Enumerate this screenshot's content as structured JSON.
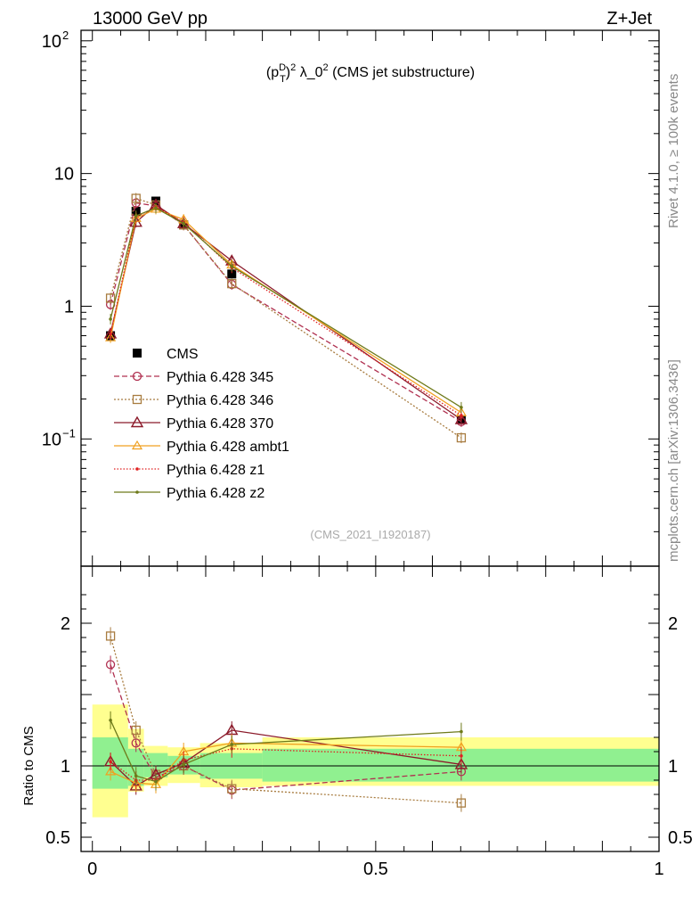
{
  "header": {
    "left": "13000 GeV pp",
    "right": "Z+Jet"
  },
  "plot_title": "(p_T^D)^2 λ_0^2 (CMS jet substructure)",
  "plot_title_parts": {
    "p": "(p",
    "sup_d": "D",
    "sub_t": "T",
    "close": ")",
    "sup_2a": "2",
    "lam": " λ_0",
    "sup_2b": "2",
    "rest": " (CMS jet substructure)"
  },
  "analysis_id": "(CMS_2021_I1920187)",
  "side_labels": {
    "rivet": "Rivet 4.1.0, ≥ 100k events",
    "mcplots": "mcplots.cern.ch [arXiv:1306.3436]"
  },
  "chart_data": [
    {
      "type": "scatter",
      "panel": "main",
      "yscale": "log",
      "xlim": [
        -0.02,
        1.0
      ],
      "ylim": [
        0.011,
        120
      ],
      "ytick_labels": [
        "10^-1",
        "1",
        "10",
        "10^2"
      ],
      "x": [
        0.032,
        0.077,
        0.112,
        0.161,
        0.246,
        0.651
      ],
      "series": [
        {
          "name": "CMS",
          "color": "#000000",
          "marker": "square",
          "dash": "none",
          "values": [
            0.6,
            5.2,
            6.2,
            4.1,
            1.75,
            0.14
          ]
        },
        {
          "name": "Pythia 6.428 345",
          "color": "#b03050",
          "marker": "circle",
          "dash": "6,3",
          "values": [
            1.03,
            6.0,
            5.7,
            4.1,
            1.46,
            0.135
          ]
        },
        {
          "name": "Pythia 6.428 346",
          "color": "#a87c40",
          "marker": "square-open",
          "dash": "2,2",
          "values": [
            1.15,
            6.5,
            5.8,
            4.1,
            1.48,
            0.102
          ]
        },
        {
          "name": "Pythia 6.428 370",
          "color": "#8b1a2a",
          "marker": "triangle",
          "dash": "none",
          "values": [
            0.62,
            4.3,
            5.8,
            4.2,
            2.2,
            0.14
          ]
        },
        {
          "name": "Pythia 6.428 ambt1",
          "color": "#f0a020",
          "marker": "triangle-open",
          "dash": "none",
          "values": [
            0.58,
            4.6,
            5.4,
            4.5,
            2.05,
            0.158
          ]
        },
        {
          "name": "Pythia 6.428 z1",
          "color": "#e02020",
          "marker": "dot",
          "dash": "1.5,2",
          "values": [
            0.62,
            4.7,
            5.6,
            4.3,
            1.95,
            0.15
          ]
        },
        {
          "name": "Pythia 6.428 z2",
          "color": "#6e7a1a",
          "marker": "dot",
          "dash": "none",
          "values": [
            0.8,
            4.8,
            5.5,
            4.2,
            2.0,
            0.173
          ]
        }
      ]
    },
    {
      "type": "scatter",
      "panel": "ratio",
      "xlim": [
        -0.02,
        1.0
      ],
      "ylim": [
        0.4,
        2.4
      ],
      "ylabel": "Ratio to CMS",
      "ytick_labels": [
        "0.5",
        "1",
        "2"
      ],
      "xtick_labels": [
        "0",
        "0.5",
        "1"
      ],
      "x": [
        0.032,
        0.077,
        0.112,
        0.161,
        0.246,
        0.651
      ],
      "bands": {
        "edges": [
          0.0,
          0.063,
          0.091,
          0.133,
          0.19,
          0.3,
          1.0
        ],
        "stat_low": [
          0.84,
          0.86,
          0.92,
          0.94,
          0.91,
          0.89
        ],
        "stat_high": [
          1.2,
          1.12,
          1.09,
          1.07,
          1.09,
          1.12
        ],
        "syst_low": [
          0.64,
          0.82,
          0.86,
          0.88,
          0.85,
          0.86
        ],
        "syst_high": [
          1.43,
          1.26,
          1.14,
          1.13,
          1.16,
          1.2
        ],
        "stat_color": "#90f090",
        "syst_color": "#ffff90"
      },
      "series": [
        {
          "name": "Pythia 6.428 345",
          "values": [
            1.71,
            1.16,
            0.92,
            1.0,
            0.83,
            0.96
          ]
        },
        {
          "name": "Pythia 6.428 346",
          "values": [
            1.91,
            1.25,
            0.94,
            1.0,
            0.84,
            0.74
          ]
        },
        {
          "name": "Pythia 6.428 370",
          "values": [
            1.03,
            0.86,
            0.94,
            1.02,
            1.25,
            1.01
          ]
        },
        {
          "name": "Pythia 6.428 ambt1",
          "values": [
            0.96,
            0.88,
            0.87,
            1.1,
            1.16,
            1.13
          ]
        },
        {
          "name": "Pythia 6.428 z1",
          "values": [
            1.03,
            0.9,
            0.9,
            1.04,
            1.12,
            1.07
          ]
        },
        {
          "name": "Pythia 6.428 z2",
          "values": [
            1.32,
            0.93,
            0.89,
            1.01,
            1.15,
            1.24
          ]
        }
      ]
    }
  ]
}
